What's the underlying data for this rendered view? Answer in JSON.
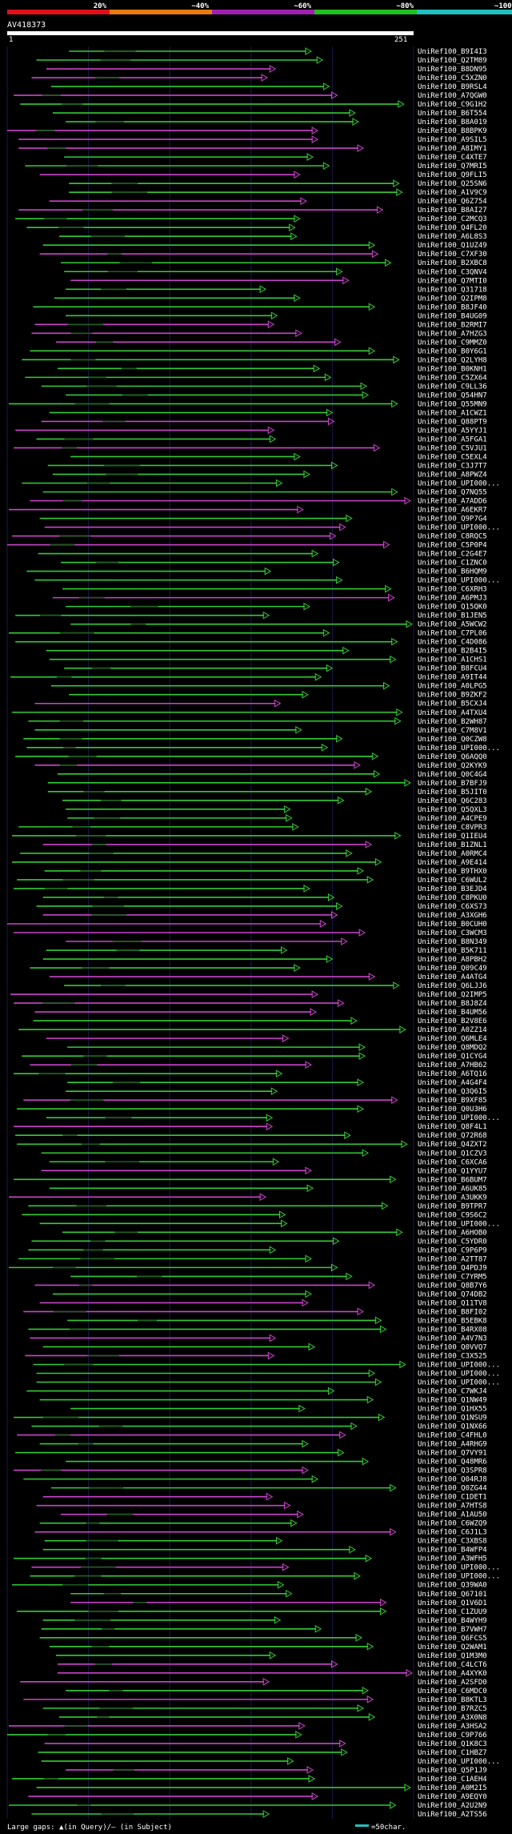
{
  "chart_data": {
    "type": "alignment-overview",
    "title": "AV418373",
    "scale_start": "1",
    "scale_end": "251",
    "query_length": 251,
    "identity_legend": [
      {
        "label": "20%",
        "color": "#e0101a"
      },
      {
        "label": "~40%",
        "color": "#e87a10"
      },
      {
        "label": "~60%",
        "color": "#a020b0"
      },
      {
        "label": "~80%",
        "color": "#20c020"
      },
      {
        "label": "~100%",
        "color": "#20c0c0"
      }
    ],
    "series_colors": {
      "green": "#33cc33",
      "magenta": "#cc44cc"
    },
    "footer_text": "Large gaps: ▲(in Query)/– (in Subject)",
    "scale_bar_label": "=50char.",
    "scale_bar_color": "#20c0c0",
    "hits": [
      "B9I4I3",
      "Q2TM89",
      "B8DN95",
      "C5XZN0",
      "B9RSL4",
      "A7QGW0",
      "C9G1H2",
      "B6T554",
      "B8A019",
      "B8BPK9",
      "A9SIL5",
      "A8IMY1",
      "C4XTE7",
      "Q7MRI5",
      "Q9FLI5",
      "Q25SN6",
      "A1V9C9",
      "Q6Z754",
      "B8AI27",
      "C2MCQ3",
      "Q4FL20",
      "A6L8S3",
      "Q1UZ49",
      "C7XF30",
      "B2XBC8",
      "C3QNV4",
      "Q7MTI0",
      "Q31718",
      "Q2IPM8",
      "B8JF40",
      "B4UG09",
      "B2RMI7",
      "A7HZG3",
      "C9MMZ0",
      "B0Y6G1",
      "Q2LYH8",
      "B0KNH1",
      "C5ZX64",
      "C9LL36",
      "Q54HN7",
      "Q55MN9",
      "A1CWZ1",
      "Q88PT9",
      "A5YYJ1",
      "A5FGA1",
      "C5VJU1",
      "C5EXL4",
      "C3J7T7",
      "A8PWZ4",
      "UPI000...",
      "Q7NQ55",
      "A7ADD6",
      "A6EKR7",
      "Q9P7G4",
      "UPI000...",
      "C8RQC5",
      "C5P0P4",
      "C2G4E7",
      "C1ZNC0",
      "B6HQM9",
      "UPI000...",
      "C6XRH3",
      "A6PMJ3",
      "Q15QK0",
      "B1JEN5",
      "A5WCW2",
      "C7PL06",
      "C4D086",
      "B2B4I5",
      "A1CHS1",
      "B8FCU4",
      "A9IT44",
      "A0LPG5",
      "B9ZKF2",
      "B5CXJ4",
      "A4TXU4",
      "B2WH87",
      "C7M8V1",
      "Q0CZW8",
      "UPI000...",
      "Q6AQQ0",
      "Q2KYK9",
      "Q0C4G4",
      "B7BFJ9",
      "B5JIT0",
      "Q6C283",
      "Q5QXL3",
      "A4CPE9",
      "C8VPR3",
      "Q1IEU4",
      "B1ZNL1",
      "A0RMC4",
      "A9E414",
      "B9THX0",
      "C6WUL2",
      "B3EJD4",
      "C8PKU0",
      "C6XS73",
      "A3XGH6",
      "B0CUH0",
      "C3WCM3",
      "B8N349",
      "B5K711",
      "A8PBH2",
      "Q09C49",
      "A4ATG4",
      "Q6LJJ6",
      "Q2IMP5",
      "B8J8Z4",
      "B4UM56",
      "B2V8E6",
      "A0ZZ14",
      "Q6MLE4",
      "Q8MDQ2",
      "Q1CYG4",
      "A7HB62",
      "A6TQ16",
      "A4G4F4",
      "Q3Q6I5",
      "B9XF85",
      "Q0U3H6",
      "UPI000...",
      "Q8F4L1",
      "Q72R68",
      "Q4ZXT2",
      "Q1CZV3",
      "C6XCA6",
      "Q1YYU7",
      "B6BUM7",
      "A6UK85",
      "A3UKK9",
      "B9TPR7",
      "C9S6C2",
      "UPI000...",
      "A6HOB0",
      "C5YDR0",
      "C9P6P9",
      "A2TT87",
      "Q4PDJ9",
      "C7YRM5",
      "Q8B7Y6",
      "Q74DB2",
      "Q11TV8",
      "B8FI02",
      "B5EBK8",
      "B4RX08",
      "A4V7N3",
      "Q0VVQ7",
      "C3X525",
      "UPI000...",
      "UPI000...",
      "UPI000...",
      "C7WKJ4",
      "Q1NW49",
      "Q1HX55",
      "Q1NSU9",
      "Q1NX66",
      "C4FHL0",
      "A4RHG9",
      "Q7VY91",
      "Q48MR6",
      "Q3SPR8",
      "Q04RJ8",
      "Q0ZG44",
      "C1DET1",
      "A7HTS8",
      "A1AU50",
      "C6WZQ9",
      "C6J1L3",
      "C3XBS8",
      "B4WFP4",
      "A3WFH5",
      "UPI000...",
      "UPI000...",
      "Q39WA0",
      "Q67101",
      "Q1V6D1",
      "C1ZUU9",
      "B4WYH9",
      "B7VWH7",
      "Q6FCS5",
      "Q2WAM1",
      "Q1M3M0",
      "C4LCT6",
      "A4XYK0",
      "A2SFD0",
      "C6MDC0",
      "B8KTL3",
      "B7RZC5",
      "A3X0N8",
      "A3HSA2",
      "C9P766",
      "Q1K8C3",
      "C1HBZ7",
      "UPI000...",
      "Q5P1J9",
      "C1AEH4",
      "A0M2I5",
      "A9EQY0",
      "A2U2N9",
      "A2TS56"
    ]
  }
}
